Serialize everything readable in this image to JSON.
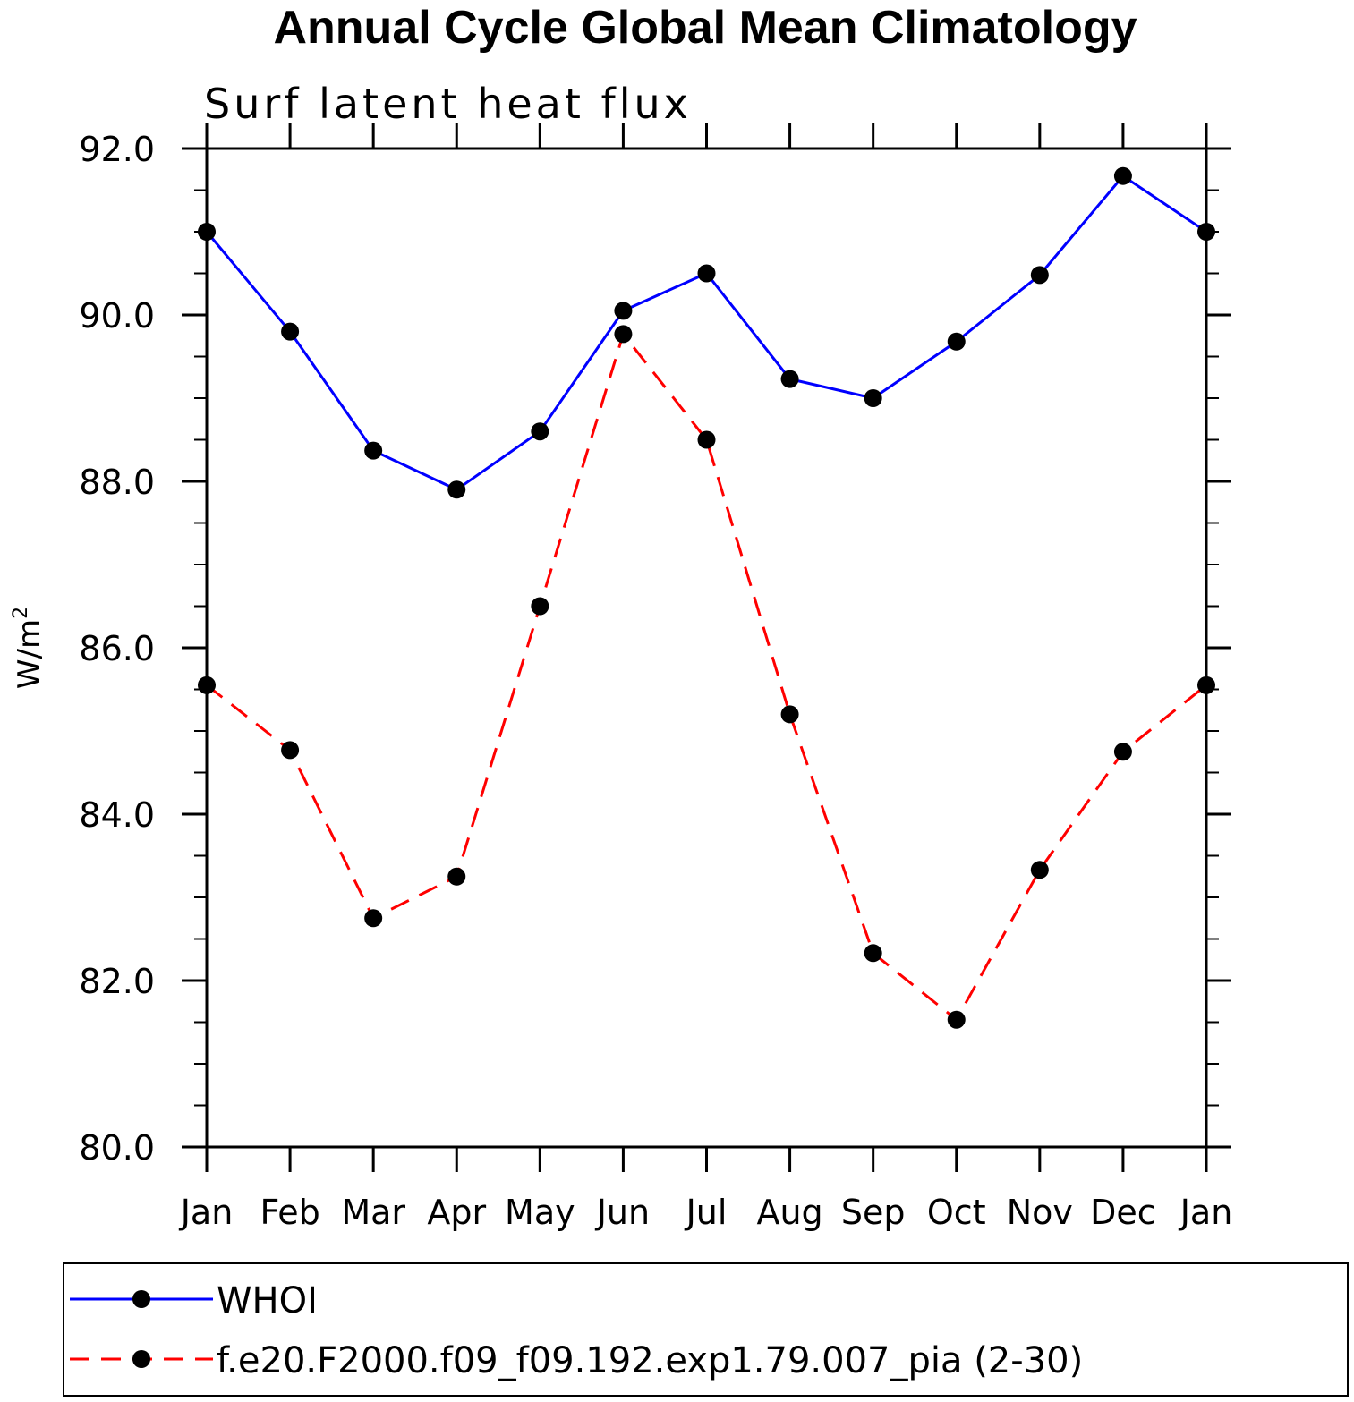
{
  "chart_data": {
    "type": "line",
    "title": "Annual Cycle Global Mean Climatology",
    "subtitle": "Surf latent heat flux",
    "xlabel": "",
    "ylabel_main": "W/m",
    "ylabel_sup": "2",
    "categories": [
      "Jan",
      "Feb",
      "Mar",
      "Apr",
      "May",
      "Jun",
      "Jul",
      "Aug",
      "Sep",
      "Oct",
      "Nov",
      "Dec",
      "Jan"
    ],
    "ylim": [
      80.0,
      92.0
    ],
    "yticks": [
      "80.0",
      "82.0",
      "84.0",
      "86.0",
      "88.0",
      "90.0",
      "92.0"
    ],
    "grid": false,
    "legend_position": "bottom",
    "series": [
      {
        "name": "WHOI",
        "color": "#0000ff",
        "dash": "solid",
        "values": [
          91.0,
          89.8,
          88.37,
          87.9,
          88.6,
          90.05,
          90.5,
          89.23,
          89.0,
          89.68,
          90.48,
          91.67,
          91.0
        ]
      },
      {
        "name": "f.e20.F2000.f09_f09.192.exp1.79.007_pia (2-30)",
        "color": "#ff0000",
        "dash": "dashed",
        "values": [
          85.55,
          84.77,
          82.75,
          83.25,
          86.5,
          89.77,
          88.5,
          85.2,
          82.33,
          81.53,
          83.33,
          84.75,
          85.55
        ]
      }
    ]
  }
}
